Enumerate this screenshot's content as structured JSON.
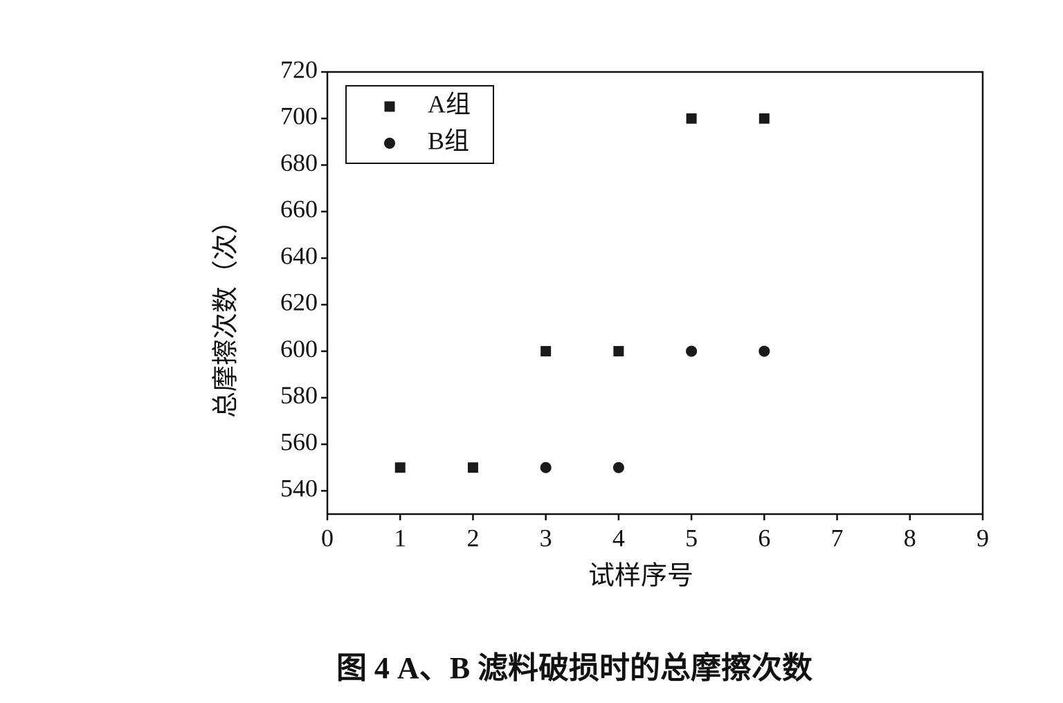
{
  "chart_data": {
    "type": "scatter",
    "caption": "图 4 A、B 滤料破损时的总摩擦次数",
    "xlabel": "试样序号",
    "ylabel": "总摩擦次数（次）",
    "xlim": [
      0,
      9
    ],
    "xticks": [
      0,
      1,
      2,
      3,
      4,
      5,
      6,
      7,
      8,
      9
    ],
    "ylim": [
      530,
      720
    ],
    "yticks": [
      540,
      560,
      580,
      600,
      620,
      640,
      660,
      680,
      700,
      720
    ],
    "legend": "upper-left",
    "series": [
      {
        "name": "A组",
        "color": "#1a1a1a",
        "marker": "square",
        "x": [
          1,
          2,
          3,
          4,
          5,
          6
        ],
        "values": [
          550,
          550,
          600,
          600,
          700,
          700
        ]
      },
      {
        "name": "B组",
        "color": "#1a1a1a",
        "marker": "circle",
        "x": [
          3,
          4,
          5,
          6
        ],
        "values": [
          550,
          550,
          600,
          600
        ]
      }
    ]
  }
}
